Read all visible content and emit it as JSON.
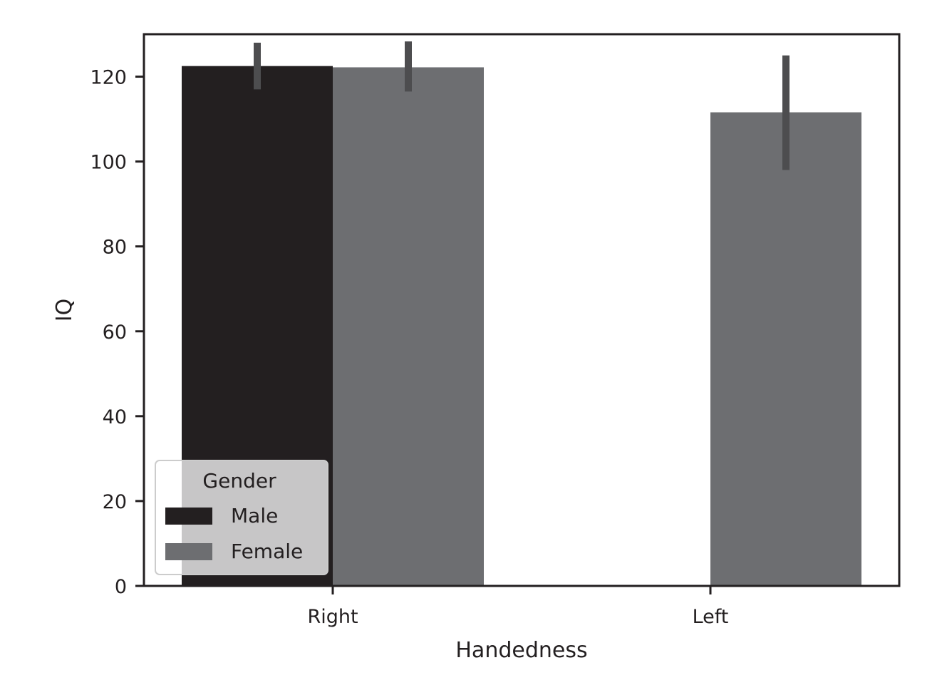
{
  "chart_data": {
    "type": "bar",
    "title": "",
    "xlabel": "Handedness",
    "ylabel": "IQ",
    "categories": [
      "Right",
      "Left"
    ],
    "ylim": [
      0,
      130
    ],
    "yticks": [
      0,
      20,
      40,
      60,
      80,
      100,
      120
    ],
    "grid": false,
    "legend": {
      "title": "Gender",
      "placement": "lower-left",
      "entries": [
        "Male",
        "Female"
      ]
    },
    "series": [
      {
        "name": "Male",
        "color": "#231f20",
        "values": [
          122.5,
          null
        ],
        "error": [
          [
            117,
            128
          ],
          null
        ]
      },
      {
        "name": "Female",
        "color": "#6d6e71",
        "values": [
          122.2,
          111.6
        ],
        "error": [
          [
            116.5,
            128.3
          ],
          [
            98,
            125
          ]
        ]
      }
    ],
    "errorbar_color": "#4d4d4f",
    "axis_color": "#231f20"
  }
}
